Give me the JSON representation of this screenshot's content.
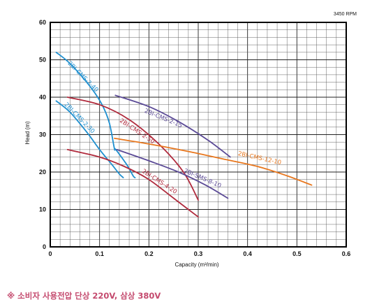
{
  "chart_data": {
    "type": "line",
    "title": "",
    "rpm_label": "3450 RPM",
    "xlabel": "Capacity (m³/min)",
    "ylabel": "Head (m)",
    "xlim": [
      0,
      0.6
    ],
    "ylim": [
      0,
      60
    ],
    "xticks": [
      "0",
      "0.1",
      "0.2",
      "0.3",
      "0.4",
      "0.5",
      "0.6"
    ],
    "yticks": [
      "0",
      "10",
      "20",
      "30",
      "40",
      "50",
      "60"
    ],
    "grid": true,
    "series": [
      {
        "name": "2BI-CMS-2-40",
        "color": "#1e8fcf",
        "points": [
          [
            0.012,
            52
          ],
          [
            0.04,
            49
          ],
          [
            0.08,
            43
          ],
          [
            0.105,
            38
          ],
          [
            0.12,
            33
          ],
          [
            0.13,
            26.3
          ],
          [
            0.133,
            26
          ],
          [
            0.155,
            22
          ],
          [
            0.168,
            19
          ],
          [
            0.172,
            18.5
          ]
        ],
        "label_at": [
          0.035,
          49
        ]
      },
      {
        "name": "2BI-CMS-2-30",
        "color": "#1e8fcf",
        "points": [
          [
            0.012,
            39
          ],
          [
            0.04,
            36
          ],
          [
            0.075,
            30.5
          ],
          [
            0.1,
            26
          ],
          [
            0.125,
            22
          ],
          [
            0.14,
            19.5
          ],
          [
            0.148,
            18.5
          ]
        ],
        "label_at": [
          0.028,
          38
        ]
      },
      {
        "name": "2BI-CMS-2-50",
        "color": "#b02a3c",
        "points": [
          [
            0.035,
            40
          ],
          [
            0.1,
            38
          ],
          [
            0.16,
            34
          ],
          [
            0.22,
            27.5
          ],
          [
            0.27,
            20
          ],
          [
            0.3,
            12.5
          ]
        ],
        "label_at": [
          0.14,
          33.5
        ]
      },
      {
        "name": "2BI-CMS-4-20",
        "color": "#b02a3c",
        "points": [
          [
            0.035,
            26
          ],
          [
            0.1,
            24
          ],
          [
            0.15,
            21.5
          ],
          [
            0.2,
            18
          ],
          [
            0.25,
            13
          ],
          [
            0.3,
            8
          ]
        ],
        "label_at": [
          0.185,
          20
        ]
      },
      {
        "name": "2BI-CMS-2-15",
        "color": "#5b4a96",
        "points": [
          [
            0.132,
            40.5
          ],
          [
            0.2,
            37.5
          ],
          [
            0.26,
            33.5
          ],
          [
            0.32,
            28.5
          ],
          [
            0.365,
            24
          ]
        ],
        "label_at": [
          0.19,
          36
        ]
      },
      {
        "name": "2BI-SMS-8-10",
        "color": "#5b4a96",
        "points": [
          [
            0.135,
            26
          ],
          [
            0.2,
            23
          ],
          [
            0.26,
            20
          ],
          [
            0.315,
            16.5
          ],
          [
            0.36,
            13
          ]
        ],
        "label_at": [
          0.27,
          20
        ]
      },
      {
        "name": "2BI-CMS-12-10",
        "color": "#e8771e",
        "points": [
          [
            0.13,
            29
          ],
          [
            0.2,
            27.5
          ],
          [
            0.28,
            25.5
          ],
          [
            0.35,
            23.5
          ],
          [
            0.42,
            21.5
          ],
          [
            0.48,
            19
          ],
          [
            0.53,
            16.5
          ]
        ],
        "label_at": [
          0.38,
          24.5
        ]
      }
    ]
  },
  "footnote": "※ 소비자 사용전압  단상 220V, 삼상 380V"
}
